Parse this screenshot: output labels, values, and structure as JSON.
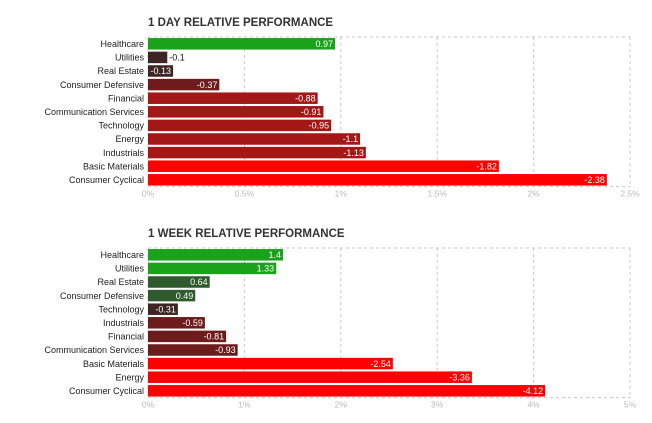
{
  "colors": {
    "bright_green": "#1aa31a",
    "dark_green": "#2e5a2e",
    "dark_brown": "#3f2424",
    "maroon": "#6d1b1b",
    "dark_red": "#a31717",
    "red": "#ff0000",
    "grid": "#c8c8c8",
    "tick_text": "#b9b9b9"
  },
  "chart_data": [
    {
      "type": "bar",
      "orientation": "horizontal",
      "title": "1 DAY RELATIVE PERFORMANCE",
      "categories": [
        "Healthcare",
        "Utilities",
        "Real Estate",
        "Consumer Defensive",
        "Financial",
        "Communication Services",
        "Technology",
        "Energy",
        "Industrials",
        "Basic Materials",
        "Consumer Cyclical"
      ],
      "values": [
        0.97,
        -0.1,
        -0.13,
        -0.37,
        -0.88,
        -0.91,
        -0.95,
        -1.1,
        -1.13,
        -1.82,
        -2.38
      ],
      "value_labels": [
        "0.97",
        "-0.1",
        "-0.13",
        "-0.37",
        "-0.88",
        "-0.91",
        "-0.95",
        "-1.1",
        "-1.13",
        "-1.82",
        "-2.38"
      ],
      "bar_colors": [
        "#1aa31a",
        "#3f2424",
        "#3f2424",
        "#6d1b1b",
        "#a31717",
        "#a31717",
        "#a31717",
        "#a31717",
        "#a31717",
        "#ff0000",
        "#ff0000"
      ],
      "xlim": [
        0,
        2.5
      ],
      "xticks": [
        0,
        0.5,
        1,
        1.5,
        2,
        2.5
      ],
      "xtick_labels": [
        "0%",
        "0.5%",
        "1%",
        "1.5%",
        "2%",
        "2.5%"
      ],
      "grid": true
    },
    {
      "type": "bar",
      "orientation": "horizontal",
      "title": "1 WEEK RELATIVE PERFORMANCE",
      "categories": [
        "Healthcare",
        "Utilities",
        "Real Estate",
        "Consumer Defensive",
        "Technology",
        "Industrials",
        "Financial",
        "Communication Services",
        "Basic Materials",
        "Energy",
        "Consumer Cyclical"
      ],
      "values": [
        1.4,
        1.33,
        0.64,
        0.49,
        -0.31,
        -0.59,
        -0.81,
        -0.93,
        -2.54,
        -3.36,
        -4.12
      ],
      "value_labels": [
        "1.4",
        "1.33",
        "0.64",
        "0.49",
        "-0.31",
        "-0.59",
        "-0.81",
        "-0.93",
        "-2.54",
        "-3.36",
        "-4.12"
      ],
      "bar_colors": [
        "#1aa31a",
        "#1aa31a",
        "#2e5a2e",
        "#2e5a2e",
        "#3f2424",
        "#6d1b1b",
        "#6d1b1b",
        "#6d1b1b",
        "#ff0000",
        "#ff0000",
        "#ff0000"
      ],
      "xlim": [
        0,
        5
      ],
      "xticks": [
        0,
        1,
        2,
        3,
        4,
        5
      ],
      "xtick_labels": [
        "0%",
        "1%",
        "2%",
        "3%",
        "4%",
        "5%"
      ],
      "grid": true
    }
  ]
}
